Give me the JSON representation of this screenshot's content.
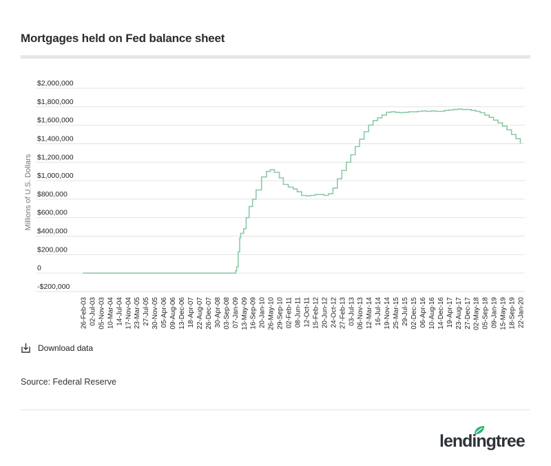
{
  "title": "Mortgages held on Fed balance sheet",
  "download_label": "Download data",
  "source": "Source: Federal Reserve",
  "brand": "lendingtree",
  "colors": {
    "line": "#8cc9a6",
    "grid": "#e2e2e2",
    "accent": "#2bb673"
  },
  "chart_data": {
    "type": "line",
    "title": "Mortgages held on Fed balance sheet",
    "ylabel": "Millions of U.S. Dollars",
    "xlabel": "",
    "ylim": [
      -200000,
      2000000
    ],
    "yticks": [
      2000000,
      1800000,
      1600000,
      1400000,
      1200000,
      1000000,
      800000,
      600000,
      400000,
      200000,
      0,
      -200000
    ],
    "ytick_labels": [
      "$2,000,000",
      "$1,800,000",
      "$1,600,000",
      "$1,400,000",
      "$1,200,000",
      "$1,000,000",
      "$800,000",
      "$600,000",
      "$400,000",
      "$200,000",
      "0",
      "-$200,000"
    ],
    "xtick_labels": [
      "26-Feb-03",
      "02-Jul-03",
      "05-Nov-03",
      "10-Mar-04",
      "14-Jul-04",
      "17-Nov-04",
      "23-Mar-05",
      "27-Jul-05",
      "30-Nov-05",
      "05-Apr-06",
      "09-Aug-06",
      "13-Dec-06",
      "18-Apr-07",
      "22-Aug-07",
      "26-Dec-07",
      "30-Apr-08",
      "03-Sep-08",
      "07-Jan-09",
      "13-May-09",
      "16-Sep-09",
      "20-Jan-10",
      "26-May-10",
      "29-Sep-10",
      "02-Feb-11",
      "08-Jun-11",
      "12-Oct-11",
      "15-Feb-12",
      "20-Jun-12",
      "24-Oct-12",
      "27-Feb-13",
      "03-Jul-13",
      "06-Nov-13",
      "12-Mar-14",
      "16-Jul-14",
      "19-Nov-14",
      "25-Mar-15",
      "29-Jul-15",
      "02-Dec-15",
      "06-Apr-16",
      "10-Aug-16",
      "14-Dec-16",
      "19-Apr-17",
      "23-Aug-17",
      "27-Dec-17",
      "02-May-18",
      "05-Sep-18",
      "09-Jan-19",
      "15-May-19",
      "18-Sep-19",
      "22-Jan-20"
    ],
    "x": [
      "26-Feb-03",
      "03-Sep-08",
      "07-Jan-09",
      "21-Jan-09",
      "04-Feb-09",
      "25-Feb-09",
      "18-Mar-09",
      "01-Apr-09",
      "13-May-09",
      "17-Jun-09",
      "29-Jul-09",
      "16-Sep-09",
      "04-Nov-09",
      "20-Jan-10",
      "31-Mar-10",
      "26-May-10",
      "21-Jul-10",
      "29-Sep-10",
      "24-Nov-10",
      "02-Feb-11",
      "13-Apr-11",
      "08-Jun-11",
      "10-Aug-11",
      "12-Oct-11",
      "14-Dec-11",
      "15-Feb-12",
      "18-Apr-12",
      "20-Jun-12",
      "22-Aug-12",
      "24-Oct-12",
      "26-Dec-12",
      "27-Feb-13",
      "01-May-13",
      "03-Jul-13",
      "04-Sep-13",
      "06-Nov-13",
      "08-Jan-14",
      "12-Mar-14",
      "14-May-14",
      "16-Jul-14",
      "17-Sep-14",
      "19-Nov-14",
      "21-Jan-15",
      "25-Mar-15",
      "27-May-15",
      "29-Jul-15",
      "30-Sep-15",
      "02-Dec-15",
      "03-Feb-16",
      "06-Apr-16",
      "08-Jun-16",
      "10-Aug-16",
      "12-Oct-16",
      "14-Dec-16",
      "15-Feb-17",
      "19-Apr-17",
      "21-Jun-17",
      "23-Aug-17",
      "25-Oct-17",
      "27-Dec-17",
      "28-Feb-18",
      "02-May-18",
      "04-Jul-18",
      "05-Sep-18",
      "07-Nov-18",
      "09-Jan-19",
      "13-Mar-19",
      "15-May-19",
      "17-Jul-19",
      "18-Sep-19",
      "20-Nov-19",
      "22-Jan-20"
    ],
    "series": [
      {
        "name": "Mortgages held on Fed balance sheet",
        "values": [
          0,
          0,
          0,
          25000,
          70000,
          230000,
          380000,
          430000,
          480000,
          600000,
          720000,
          800000,
          900000,
          1040000,
          1100000,
          1120000,
          1090000,
          1030000,
          960000,
          930000,
          910000,
          880000,
          840000,
          835000,
          840000,
          850000,
          850000,
          840000,
          860000,
          920000,
          1020000,
          1110000,
          1200000,
          1280000,
          1370000,
          1450000,
          1530000,
          1600000,
          1650000,
          1680000,
          1710000,
          1740000,
          1745000,
          1740000,
          1735000,
          1740000,
          1745000,
          1745000,
          1750000,
          1755000,
          1750000,
          1755000,
          1750000,
          1750000,
          1760000,
          1765000,
          1770000,
          1775000,
          1770000,
          1770000,
          1760000,
          1750000,
          1735000,
          1710000,
          1685000,
          1655000,
          1625000,
          1590000,
          1550000,
          1500000,
          1455000,
          1400000
        ]
      }
    ]
  }
}
